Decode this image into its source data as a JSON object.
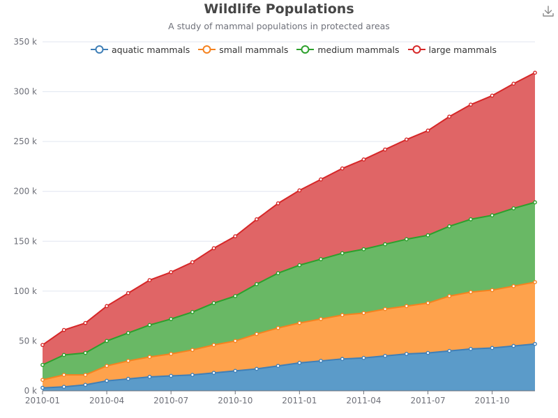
{
  "chart_data": {
    "type": "area",
    "stacked": true,
    "title": "Wildlife Populations",
    "subtitle": "A study of mammal populations in protected areas",
    "x": [
      "2010-01",
      "2010-02",
      "2010-03",
      "2010-04",
      "2010-05",
      "2010-06",
      "2010-07",
      "2010-08",
      "2010-09",
      "2010-10",
      "2010-11",
      "2010-12",
      "2011-01",
      "2011-02",
      "2011-03",
      "2011-04",
      "2011-05",
      "2011-06",
      "2011-07",
      "2011-08",
      "2011-09",
      "2011-10",
      "2011-11",
      "2011-12"
    ],
    "x_tick_labels": [
      "2010-01",
      "2010-04",
      "2010-07",
      "2010-10",
      "2011-01",
      "2011-04",
      "2011-07",
      "2011-10"
    ],
    "ylim": [
      0,
      350000
    ],
    "y_tick_labels": [
      "0 k",
      "50 k",
      "100 k",
      "150 k",
      "200 k",
      "250 k",
      "300 k",
      "350 k"
    ],
    "y_ticks": [
      0,
      50000,
      100000,
      150000,
      200000,
      250000,
      300000,
      350000
    ],
    "grid": "horizontal",
    "legend_position": "top",
    "series": [
      {
        "name": "aquatic mammals",
        "color": "#5470c6",
        "line_color": "#3f7fb7",
        "fill_color": "#5b9bc9",
        "values": [
          3000,
          4000,
          6000,
          10000,
          12000,
          14000,
          15000,
          16000,
          18000,
          20000,
          22000,
          25000,
          28000,
          30000,
          32000,
          33000,
          35000,
          37000,
          38000,
          40000,
          42000,
          43000,
          45000,
          47000
        ]
      },
      {
        "name": "small mammals",
        "color": "#fc8c2c",
        "line_color": "#f5821f",
        "fill_color": "#fea24c",
        "values": [
          8000,
          12000,
          10000,
          15000,
          18000,
          20000,
          22000,
          25000,
          28000,
          30000,
          35000,
          38000,
          40000,
          42000,
          44000,
          45000,
          47000,
          48000,
          50000,
          55000,
          57000,
          58000,
          60000,
          62000
        ]
      },
      {
        "name": "medium mammals",
        "color": "#2ca02c",
        "line_color": "#2ca02c",
        "fill_color": "#69b865",
        "values": [
          15000,
          20000,
          22000,
          25000,
          28000,
          32000,
          35000,
          38000,
          42000,
          45000,
          50000,
          55000,
          58000,
          60000,
          62000,
          64000,
          65000,
          67000,
          68000,
          70000,
          73000,
          75000,
          78000,
          80000
        ]
      },
      {
        "name": "large mammals",
        "color": "#d62728",
        "line_color": "#d62728",
        "fill_color": "#e06566",
        "values": [
          20000,
          25000,
          30000,
          35000,
          40000,
          45000,
          47000,
          50000,
          55000,
          60000,
          65000,
          70000,
          75000,
          80000,
          85000,
          90000,
          95000,
          100000,
          105000,
          110000,
          115000,
          120000,
          125000,
          130000
        ]
      }
    ]
  },
  "toolbar": {
    "download_icon": "download-icon"
  }
}
